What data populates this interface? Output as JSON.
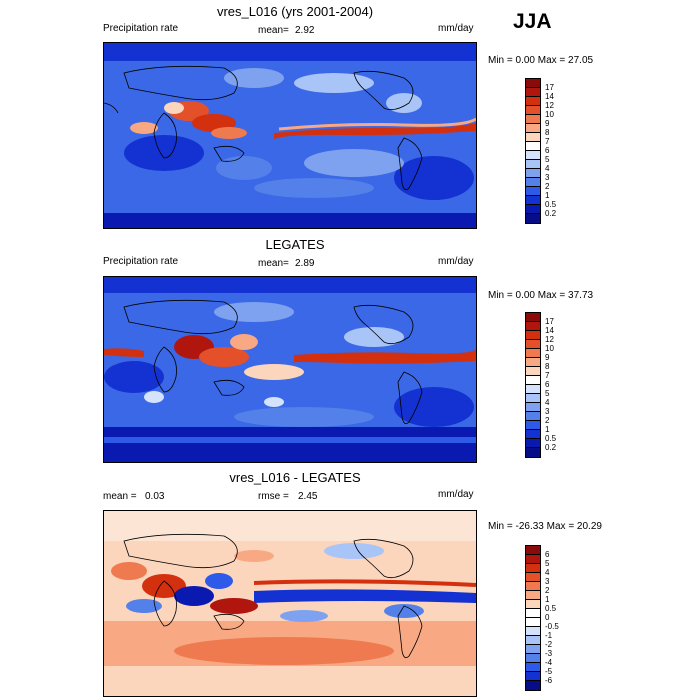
{
  "season": "JJA",
  "panels": [
    {
      "title": "vres_L016 (yrs 2001-2004)",
      "left_label": "Precipitation rate",
      "center_label": "mean=",
      "center_value": "2.92",
      "unit": "mm/day",
      "min_text": "Min =   0.00 Max =  27.05",
      "colorbar": {
        "labels": [
          "17",
          "14",
          "12",
          "10",
          "9",
          "8",
          "7",
          "6",
          "5",
          "4",
          "3",
          "2",
          "1",
          "0.5",
          "0.2"
        ],
        "colors": [
          "#8b0a0a",
          "#b0160e",
          "#d2300f",
          "#e4502a",
          "#ef7a50",
          "#f8a882",
          "#fcd5bd",
          "#ffffff",
          "#d4e3fb",
          "#a9c4f6",
          "#7ea2ef",
          "#5480ea",
          "#2d5ae8",
          "#1431d2",
          "#0a19b0",
          "#060d86"
        ]
      }
    },
    {
      "title": "LEGATES",
      "left_label": "Precipitation rate",
      "center_label": "mean=",
      "center_value": "2.89",
      "unit": "mm/day",
      "min_text": "Min =   0.00 Max =  37.73",
      "colorbar": {
        "labels": [
          "17",
          "14",
          "12",
          "10",
          "9",
          "8",
          "7",
          "6",
          "5",
          "4",
          "3",
          "2",
          "1",
          "0.5",
          "0.2"
        ],
        "colors": [
          "#8b0a0a",
          "#b0160e",
          "#d2300f",
          "#e4502a",
          "#ef7a50",
          "#f8a882",
          "#fcd5bd",
          "#ffffff",
          "#d4e3fb",
          "#a9c4f6",
          "#7ea2ef",
          "#5480ea",
          "#2d5ae8",
          "#1431d2",
          "#0a19b0",
          "#060d86"
        ]
      }
    },
    {
      "title": "vres_L016 - LEGATES",
      "left_label": "mean =",
      "left_value": "0.03",
      "center_label": "rmse =",
      "center_value": "2.45",
      "unit": "mm/day",
      "min_text": "Min = -26.33 Max =  20.29",
      "colorbar": {
        "labels": [
          "6",
          "5",
          "4",
          "3",
          "2",
          "1",
          "0.5",
          "0",
          "-0.5",
          "-1",
          "-2",
          "-3",
          "-4",
          "-5",
          "-6"
        ],
        "colors": [
          "#8b0a0a",
          "#b0160e",
          "#d2300f",
          "#e4502a",
          "#ef7a50",
          "#f8a882",
          "#fcd5bd",
          "#ffffff",
          "#ffffff",
          "#d4e3fb",
          "#a9c4f6",
          "#7ea2ef",
          "#5480ea",
          "#2d5ae8",
          "#1431d2",
          "#060d86"
        ]
      }
    }
  ],
  "chart_data": [
    {
      "type": "heatmap",
      "title": "vres_L016 (yrs 2001-2004)",
      "variable": "Precipitation rate",
      "unit": "mm/day",
      "mean": 2.92,
      "min": 0.0,
      "max": 27.05,
      "colorbar_levels": [
        0.2,
        0.5,
        1,
        2,
        3,
        4,
        5,
        6,
        7,
        8,
        9,
        10,
        12,
        14,
        17
      ]
    },
    {
      "type": "heatmap",
      "title": "LEGATES",
      "variable": "Precipitation rate",
      "unit": "mm/day",
      "mean": 2.89,
      "min": 0.0,
      "max": 37.73,
      "colorbar_levels": [
        0.2,
        0.5,
        1,
        2,
        3,
        4,
        5,
        6,
        7,
        8,
        9,
        10,
        12,
        14,
        17
      ]
    },
    {
      "type": "heatmap",
      "title": "vres_L016 - LEGATES",
      "unit": "mm/day",
      "mean": 0.03,
      "rmse": 2.45,
      "min": -26.33,
      "max": 20.29,
      "colorbar_levels": [
        -6,
        -5,
        -4,
        -3,
        -2,
        -1,
        -0.5,
        0,
        0.5,
        1,
        2,
        3,
        4,
        5,
        6
      ]
    }
  ]
}
